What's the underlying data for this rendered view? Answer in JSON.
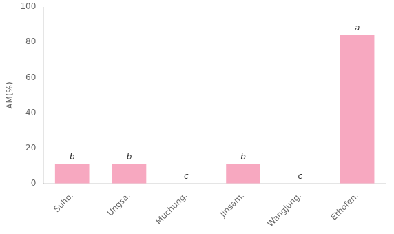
{
  "chart_data": {
    "type": "bar",
    "categories": [
      "Suho.",
      "Ungsa.",
      "Muchung.",
      "Jinsam.",
      "Wangjung.",
      "Ethofen."
    ],
    "values": [
      11,
      11,
      0,
      11,
      0,
      84
    ],
    "color": "#F7A8C0",
    "annotations": [
      "b",
      "b",
      "c",
      "b",
      "c",
      "a"
    ],
    "ylabel": "AM(%)",
    "ylim": [
      0,
      100
    ],
    "yticks": [
      0,
      20,
      40,
      60,
      80,
      100
    ],
    "grid": false
  }
}
